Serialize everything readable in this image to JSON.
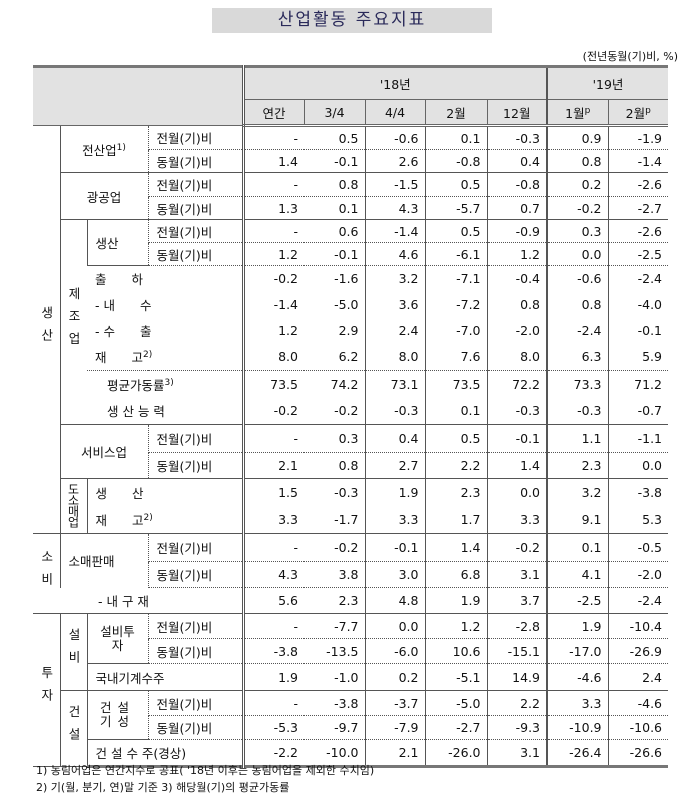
{
  "title": "산업활동 주요지표",
  "unit_note": "(전년동월(기)비, %)",
  "header": {
    "year18": "'18년",
    "year19": "'19년",
    "columns": [
      "연간",
      "3/4",
      "4/4",
      "2월",
      "12월",
      "1월",
      "2월"
    ],
    "preliminary_mark": "p"
  },
  "labels": {
    "production": "생산",
    "all_industry": "전산업",
    "all_industry_note": "1)",
    "mining": "광공업",
    "manufacturing": "제조업",
    "mfg_production": "생산",
    "shipment": "출　　하",
    "domestic": "- 내　　수",
    "export": "- 수　　출",
    "inventory": "재　　고",
    "inventory_note": "2)",
    "utilization": "평균가동률",
    "utilization_note": "3)",
    "capacity": "생 산 능 력",
    "services": "서비스업",
    "wholesale_retail": "도소매업",
    "wr_production": "생　　산",
    "wr_inventory": "재　　고",
    "consumption": "소비",
    "retail_sales": "소매판매",
    "durables": "- 내 구 재",
    "investment": "투자",
    "facility": "설비",
    "facility_investment": "설비투자",
    "machinery_orders": "국내기계수주",
    "construction": "건설",
    "construction_completed": "건설기성",
    "construction_orders": "건 설 수 주(경상)",
    "mom": "전월(기)비",
    "yoy": "동월(기)비"
  },
  "rows": [
    {
      "values": [
        "-",
        "0.5",
        "-0.6",
        "0.1",
        "-0.3",
        "0.9",
        "-1.9"
      ]
    },
    {
      "values": [
        "1.4",
        "-0.1",
        "2.6",
        "-0.8",
        "0.4",
        "0.8",
        "-1.4"
      ]
    },
    {
      "values": [
        "-",
        "0.8",
        "-1.5",
        "0.5",
        "-0.8",
        "0.2",
        "-2.6"
      ]
    },
    {
      "values": [
        "1.3",
        "0.1",
        "4.3",
        "-5.7",
        "0.7",
        "-0.2",
        "-2.7"
      ]
    },
    {
      "values": [
        "-",
        "0.6",
        "-1.4",
        "0.5",
        "-0.9",
        "0.3",
        "-2.6"
      ]
    },
    {
      "values": [
        "1.2",
        "-0.1",
        "4.6",
        "-6.1",
        "1.2",
        "0.0",
        "-2.5"
      ]
    },
    {
      "values": [
        "-0.2",
        "-1.6",
        "3.2",
        "-7.1",
        "-0.4",
        "-0.6",
        "-2.4"
      ]
    },
    {
      "values": [
        "-1.4",
        "-5.0",
        "3.6",
        "-7.2",
        "0.8",
        "0.8",
        "-4.0"
      ]
    },
    {
      "values": [
        "1.2",
        "2.9",
        "2.4",
        "-7.0",
        "-2.0",
        "-2.4",
        "-0.1"
      ]
    },
    {
      "values": [
        "8.0",
        "6.2",
        "8.0",
        "7.6",
        "8.0",
        "6.3",
        "5.9"
      ]
    },
    {
      "values": [
        "73.5",
        "74.2",
        "73.1",
        "73.5",
        "72.2",
        "73.3",
        "71.2"
      ]
    },
    {
      "values": [
        "-0.2",
        "-0.2",
        "-0.3",
        "0.1",
        "-0.3",
        "-0.3",
        "-0.7"
      ]
    },
    {
      "values": [
        "-",
        "0.3",
        "0.4",
        "0.5",
        "-0.1",
        "1.1",
        "-1.1"
      ]
    },
    {
      "values": [
        "2.1",
        "0.8",
        "2.7",
        "2.2",
        "1.4",
        "2.3",
        "0.0"
      ]
    },
    {
      "values": [
        "1.5",
        "-0.3",
        "1.9",
        "2.3",
        "0.0",
        "3.2",
        "-3.8"
      ]
    },
    {
      "values": [
        "3.3",
        "-1.7",
        "3.3",
        "1.7",
        "3.3",
        "9.1",
        "5.3"
      ]
    },
    {
      "values": [
        "-",
        "-0.2",
        "-0.1",
        "1.4",
        "-0.2",
        "0.1",
        "-0.5"
      ]
    },
    {
      "values": [
        "4.3",
        "3.8",
        "3.0",
        "6.8",
        "3.1",
        "4.1",
        "-2.0"
      ]
    },
    {
      "values": [
        "5.6",
        "2.3",
        "4.8",
        "1.9",
        "3.7",
        "-2.5",
        "-2.4"
      ]
    },
    {
      "values": [
        "-",
        "-7.7",
        "0.0",
        "1.2",
        "-2.8",
        "1.9",
        "-10.4"
      ]
    },
    {
      "values": [
        "-3.8",
        "-13.5",
        "-6.0",
        "10.6",
        "-15.1",
        "-17.0",
        "-26.9"
      ]
    },
    {
      "values": [
        "1.9",
        "-1.0",
        "0.2",
        "-5.1",
        "14.9",
        "-4.6",
        "2.4"
      ]
    },
    {
      "values": [
        "-",
        "-3.8",
        "-3.7",
        "-5.0",
        "2.2",
        "3.3",
        "-4.6"
      ]
    },
    {
      "values": [
        "-5.3",
        "-9.7",
        "-7.9",
        "-2.7",
        "-9.3",
        "-10.9",
        "-10.6"
      ]
    },
    {
      "values": [
        "-2.2",
        "-10.0",
        "2.1",
        "-26.0",
        "3.1",
        "-26.4",
        "-26.6"
      ]
    }
  ],
  "footnotes": [
    "1) 농림어업은 연간지수로 공표( '18년 이후는 농림어업을 제외한 수치임)",
    "2) 기(월, 분기, 연)말 기준 3) 해당월(기)의 평균가동률"
  ]
}
